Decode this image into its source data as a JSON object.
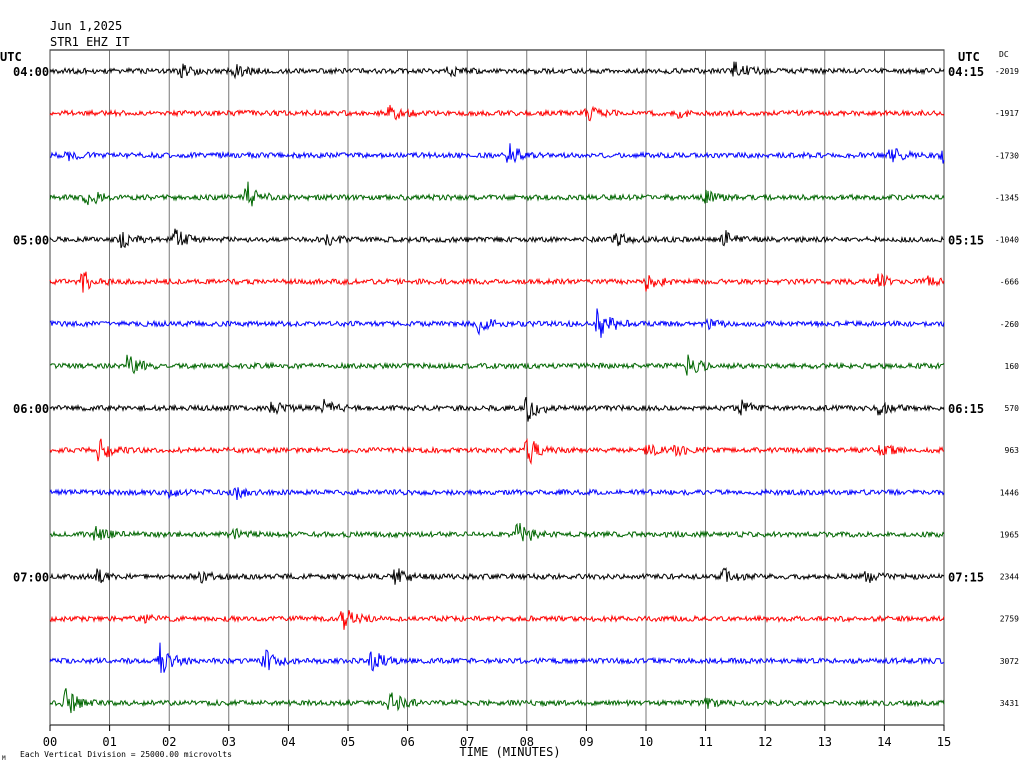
{
  "header": {
    "date": "Jun 1,2025",
    "station": "STR1 EHZ IT"
  },
  "chart_data": {
    "type": "line",
    "title": "",
    "xlabel": "TIME (MINUTES)",
    "ylabel": "",
    "left_axis_label": "UTC",
    "right_axis_label": "UTC",
    "dc_label": "DC",
    "x_range": [
      0,
      15
    ],
    "x_ticks": [
      "00",
      "01",
      "02",
      "03",
      "04",
      "05",
      "06",
      "07",
      "08",
      "09",
      "10",
      "11",
      "12",
      "13",
      "14",
      "15"
    ],
    "left_hour_labels": [
      {
        "row": 0,
        "text": "04:00"
      },
      {
        "row": 4,
        "text": "05:00"
      },
      {
        "row": 8,
        "text": "06:00"
      },
      {
        "row": 12,
        "text": "07:00"
      }
    ],
    "right_hour_labels": [
      {
        "row": 0,
        "text": "04:15"
      },
      {
        "row": 4,
        "text": "05:15"
      },
      {
        "row": 8,
        "text": "06:15"
      },
      {
        "row": 12,
        "text": "07:15"
      }
    ],
    "color_cycle": [
      "#000000",
      "#ff0000",
      "#0000ff",
      "#006600"
    ],
    "grid": true,
    "footer_note": "Each Vertical Division = 25000.00 microvolts",
    "traces": [
      {
        "dc": "-2019",
        "events": [
          [
            11.5,
            1.6
          ],
          [
            3.1,
            1.0
          ],
          [
            2.2,
            0.9
          ],
          [
            6.7,
            0.8
          ]
        ]
      },
      {
        "dc": "-1917",
        "events": [
          [
            5.7,
            1.2
          ],
          [
            9.0,
            1.1
          ],
          [
            10.5,
            0.5
          ]
        ]
      },
      {
        "dc": "-1730",
        "events": [
          [
            7.7,
            1.8
          ],
          [
            14.1,
            1.1
          ],
          [
            0.3,
            0.7
          ],
          [
            14.95,
            1.0
          ]
        ]
      },
      {
        "dc": "-1345",
        "events": [
          [
            3.3,
            2.2
          ],
          [
            0.6,
            1.6
          ],
          [
            11.0,
            0.8
          ]
        ]
      },
      {
        "dc": "-1040",
        "events": [
          [
            2.1,
            1.5
          ],
          [
            1.2,
            1.2
          ],
          [
            11.3,
            1.4
          ],
          [
            4.6,
            0.9
          ],
          [
            9.5,
            0.8
          ]
        ]
      },
      {
        "dc": "-666",
        "events": [
          [
            0.55,
            1.5
          ],
          [
            10.0,
            1.2
          ],
          [
            13.9,
            1.0
          ],
          [
            14.7,
            0.7
          ]
        ]
      },
      {
        "dc": "-260",
        "events": [
          [
            9.2,
            3.2
          ],
          [
            7.2,
            1.4
          ],
          [
            11.0,
            0.6
          ]
        ]
      },
      {
        "dc": "160",
        "events": [
          [
            1.3,
            1.6
          ],
          [
            10.7,
            1.5
          ]
        ]
      },
      {
        "dc": "570",
        "events": [
          [
            8.0,
            2.0
          ],
          [
            3.7,
            1.1
          ],
          [
            4.6,
            1.0
          ],
          [
            11.6,
            1.0
          ],
          [
            13.9,
            0.8
          ]
        ]
      },
      {
        "dc": "963",
        "events": [
          [
            0.8,
            1.8
          ],
          [
            8.0,
            2.4
          ],
          [
            13.9,
            1.1
          ],
          [
            10.0,
            0.9
          ],
          [
            10.5,
            0.6
          ]
        ]
      },
      {
        "dc": "1446",
        "events": [
          [
            3.1,
            1.1
          ],
          [
            2.0,
            0.5
          ]
        ]
      },
      {
        "dc": "1965",
        "events": [
          [
            7.85,
            2.0
          ],
          [
            0.75,
            1.0
          ],
          [
            3.1,
            0.6
          ]
        ]
      },
      {
        "dc": "2344",
        "events": [
          [
            5.8,
            1.4
          ],
          [
            0.8,
            1.1
          ],
          [
            11.3,
            1.2
          ],
          [
            13.7,
            0.9
          ],
          [
            2.5,
            0.8
          ]
        ]
      },
      {
        "dc": "2759",
        "events": [
          [
            4.9,
            1.8
          ],
          [
            1.6,
            0.5
          ]
        ]
      },
      {
        "dc": "3072",
        "events": [
          [
            1.85,
            2.4
          ],
          [
            3.6,
            1.6
          ],
          [
            5.4,
            1.5
          ]
        ]
      },
      {
        "dc": "3431",
        "events": [
          [
            0.25,
            2.0
          ],
          [
            5.7,
            1.6
          ],
          [
            11.0,
            0.6
          ]
        ]
      }
    ]
  }
}
